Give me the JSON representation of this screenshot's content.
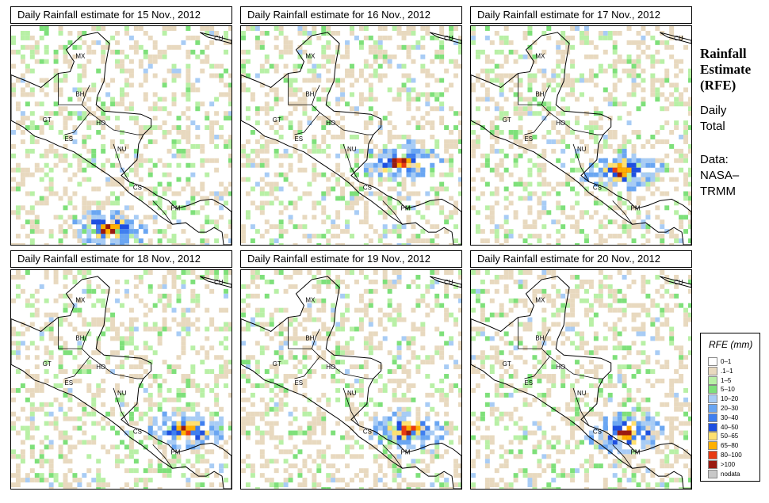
{
  "panels": [
    {
      "title": "Daily Rainfall estimate for  15 Nov., 2012",
      "seed": 15
    },
    {
      "title": "Daily Rainfall estimate for  16 Nov., 2012",
      "seed": 16
    },
    {
      "title": "Daily Rainfall estimate for  17 Nov., 2012",
      "seed": 17
    },
    {
      "title": "Daily Rainfall estimate for  18 Nov., 2012",
      "seed": 18
    },
    {
      "title": "Daily Rainfall estimate for  19 Nov., 2012",
      "seed": 19
    },
    {
      "title": "Daily Rainfall estimate for  20 Nov., 2012",
      "seed": 20
    }
  ],
  "country_labels": [
    {
      "code": "MX"
    },
    {
      "code": "BH"
    },
    {
      "code": "GT"
    },
    {
      "code": "HO"
    },
    {
      "code": "ES"
    },
    {
      "code": "NU"
    },
    {
      "code": "CS"
    },
    {
      "code": "PM"
    },
    {
      "code": "CU"
    }
  ],
  "side": {
    "title_line1": "Rainfall",
    "title_line2": "Estimate",
    "title_line3": "(RFE)",
    "daily": "Daily",
    "total": "Total",
    "data": "Data:",
    "nasa": "NASA–",
    "trmm": "TRMM"
  },
  "legend": {
    "title": "RFE (mm)",
    "items": [
      {
        "label": "0–1",
        "color": "#ffffff"
      },
      {
        "label": ".1–1",
        "color": "#e8d9bf"
      },
      {
        "label": "1–5",
        "color": "#b8f0a6"
      },
      {
        "label": "5–10",
        "color": "#7ee07a"
      },
      {
        "label": "10–20",
        "color": "#a8ccf5"
      },
      {
        "label": "20–30",
        "color": "#6aa6f2"
      },
      {
        "label": "30–40",
        "color": "#3f7ff0"
      },
      {
        "label": "40–50",
        "color": "#1d4fe0"
      },
      {
        "label": "50–65",
        "color": "#ffe070"
      },
      {
        "label": "65–80",
        "color": "#ffb000"
      },
      {
        "label": "80–100",
        "color": "#e83a12"
      },
      {
        "label": ">100",
        "color": "#9a1a10"
      },
      {
        "label": "nodata",
        "color": "#c8c8c8"
      }
    ]
  }
}
